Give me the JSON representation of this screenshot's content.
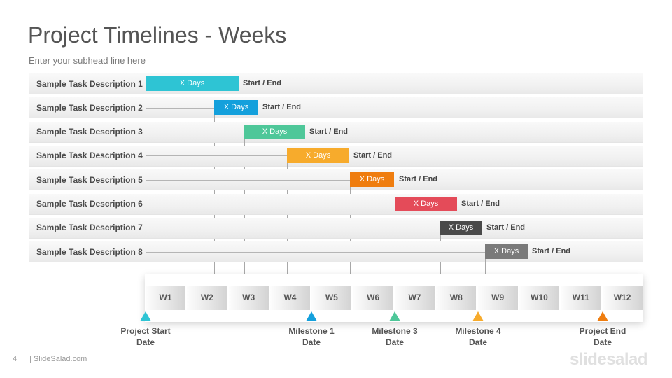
{
  "header": {
    "title": "Project Timelines - Weeks",
    "subtitle": "Enter your subhead  line here"
  },
  "tasks": [
    {
      "label": "Sample Task Description 1",
      "bar_text": "X Days",
      "note": "Start / End",
      "color": "#2ec4d4",
      "start_week": 1,
      "end_week": 3.25
    },
    {
      "label": "Sample Task Description 2",
      "bar_text": "X Days",
      "note": "Start / End",
      "color": "#14a0dc",
      "start_week": 2.65,
      "end_week": 3.72
    },
    {
      "label": "Sample Task Description 3",
      "bar_text": "X Days",
      "note": "Start / End",
      "color": "#4ec799",
      "start_week": 3.38,
      "end_week": 4.85
    },
    {
      "label": "Sample Task Description 4",
      "bar_text": "X Days",
      "note": "Start / End",
      "color": "#f7ab2c",
      "start_week": 4.4,
      "end_week": 5.9
    },
    {
      "label": "Sample Task Description 5",
      "bar_text": "X Days",
      "note": "Start / End",
      "color": "#ef7d0f",
      "start_week": 5.93,
      "end_week": 7.0
    },
    {
      "label": "Sample Task Description 6",
      "bar_text": "X Days",
      "note": "Start / End",
      "color": "#e44b59",
      "start_week": 7.0,
      "end_week": 8.5
    },
    {
      "label": "Sample Task Description 7",
      "bar_text": "X Days",
      "note": "Start / End",
      "color": "#4a4a4a",
      "start_week": 8.1,
      "end_week": 9.1
    },
    {
      "label": "Sample Task Description 8",
      "bar_text": "X Days",
      "note": "Start / End",
      "color": "#7a7a7a",
      "start_week": 9.17,
      "end_week": 10.2
    }
  ],
  "weeks": [
    "W1",
    "W2",
    "W3",
    "W4",
    "W5",
    "W6",
    "W7",
    "W8",
    "W9",
    "W10",
    "W11",
    "W12"
  ],
  "milestones": [
    {
      "label1": "Project Start",
      "label2": "Date",
      "week": 1,
      "color": "#2ec4d4"
    },
    {
      "label1": "Milestone  1",
      "label2": "Date",
      "week": 5,
      "color": "#14a0dc"
    },
    {
      "label1": "Milestone  3",
      "label2": "Date",
      "week": 7,
      "color": "#4ec799"
    },
    {
      "label1": "Milestone  4",
      "label2": "Date",
      "week": 9,
      "color": "#f7ab2c"
    },
    {
      "label1": "Project End",
      "label2": "Date",
      "week": 12,
      "color": "#ef7d0f"
    }
  ],
  "footer": {
    "page_number": "4",
    "brand": "| SlideSalad.com",
    "logo": "slidesalad"
  }
}
